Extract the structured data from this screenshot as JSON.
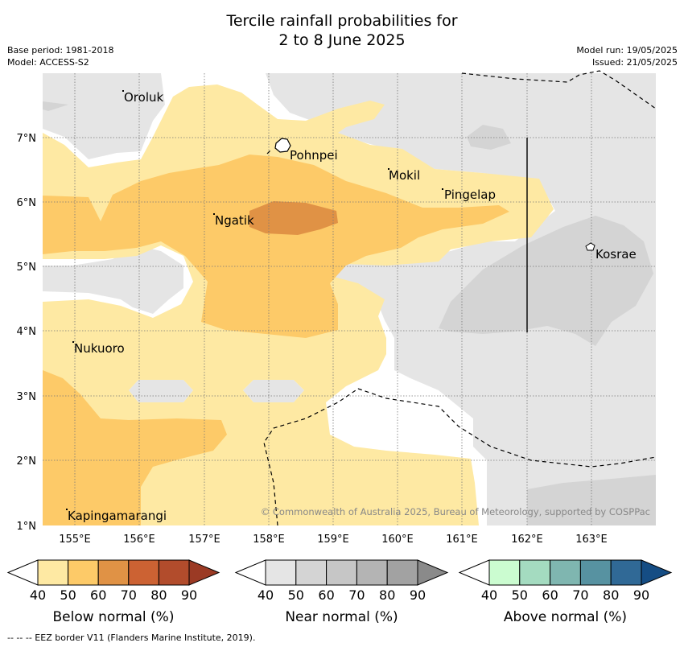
{
  "header": {
    "title_line1": "Tercile rainfall probabilities for",
    "title_line2": "2 to 8 June 2025",
    "base_period": "Base period: 1981-2018",
    "model": "Model: ACCESS-S2",
    "model_run": "Model run: 19/05/2025",
    "issued": "Issued: 21/05/2025"
  },
  "map": {
    "lat_labels": [
      "7°N",
      "6°N",
      "5°N",
      "4°N",
      "3°N",
      "2°N",
      "1°N"
    ],
    "lon_labels": [
      "155°E",
      "156°E",
      "157°E",
      "158°E",
      "159°E",
      "160°E",
      "161°E",
      "162°E",
      "163°E"
    ],
    "places": [
      "Oroluk",
      "Pohnpei",
      "Mokil",
      "Pingelap",
      "Ngatik",
      "Kosrae",
      "Nukuoro",
      "Kapingamarangi"
    ],
    "copyright": "© Commonwealth of Australia 2025, Bureau of Meteorology, supported by COSPPac",
    "colors": {
      "below_40_50": "#fee9a3",
      "below_50_60": "#fdca68",
      "below_60_70": "#e09245",
      "near_40_50": "#e5e5e5",
      "near_50_60": "#d4d4d4"
    }
  },
  "colorbars": [
    {
      "label": "Below normal (%)",
      "ticks": [
        "40",
        "50",
        "60",
        "70",
        "80",
        "90"
      ],
      "colors": [
        "#fee9a3",
        "#fdca68",
        "#e09245",
        "#cc6233",
        "#b24c2c",
        "#9b3a24"
      ]
    },
    {
      "label": "Near normal (%)",
      "ticks": [
        "40",
        "50",
        "60",
        "70",
        "80",
        "90"
      ],
      "colors": [
        "#e5e5e5",
        "#d4d4d4",
        "#c6c6c6",
        "#b4b4b4",
        "#a2a2a2",
        "#8a8a8a"
      ]
    },
    {
      "label": "Above normal (%)",
      "ticks": [
        "40",
        "50",
        "60",
        "70",
        "80",
        "90"
      ],
      "colors": [
        "#cbfcd0",
        "#a4dbc0",
        "#7fb6b0",
        "#5792a1",
        "#306996",
        "#154d84"
      ]
    }
  ],
  "footnote": "--  --  -- EEZ border V11 (Flanders Marine Institute, 2019)."
}
